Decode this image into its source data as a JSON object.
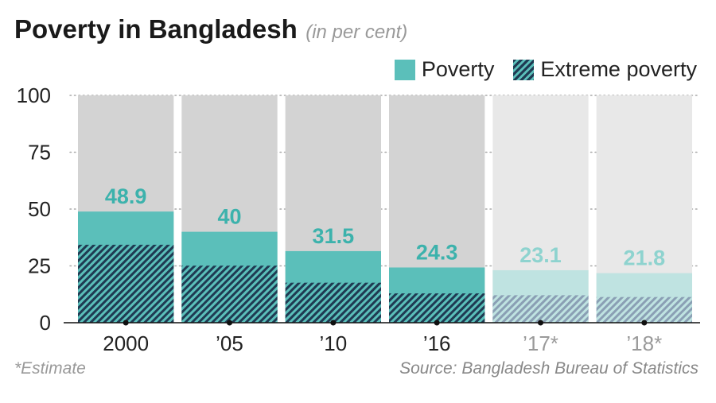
{
  "header": {
    "title": "Poverty in Bangladesh",
    "subtitle": "(in per cent)"
  },
  "legend": {
    "poverty": "Poverty",
    "extreme": "Extreme poverty"
  },
  "footer": {
    "footnote": "*Estimate",
    "source": "Source: Bangladesh Bureau of Statistics"
  },
  "colors": {
    "poverty": "#5bbfba",
    "poverty_estimate": "#bfe3e1",
    "extreme_stripe": "#1f3a52",
    "background_bar": "#d3d3d3",
    "background_bar_estimate": "#e8e8e8",
    "label": "#3cb2ac",
    "label_estimate": "#8ed3cf"
  },
  "chart_data": {
    "type": "bar",
    "title": "Poverty in Bangladesh",
    "subtitle": "(in per cent)",
    "categories": [
      "2000",
      "’05",
      "’10",
      "’16",
      "’17*",
      "’18*"
    ],
    "estimate": [
      false,
      false,
      false,
      false,
      true,
      true
    ],
    "series": [
      {
        "name": "Poverty",
        "values": [
          48.9,
          40,
          31.5,
          24.3,
          23.1,
          21.8
        ]
      },
      {
        "name": "Extreme poverty",
        "values": [
          34.3,
          25.1,
          17.6,
          12.9,
          12.1,
          11.3
        ]
      }
    ],
    "data_labels": [
      "48.9",
      "40",
      "31.5",
      "24.3",
      "23.1",
      "21.8"
    ],
    "yticks": [
      0,
      25,
      50,
      75,
      100
    ],
    "ylim": [
      0,
      100
    ],
    "grid": true,
    "legend_position": "top-right"
  }
}
